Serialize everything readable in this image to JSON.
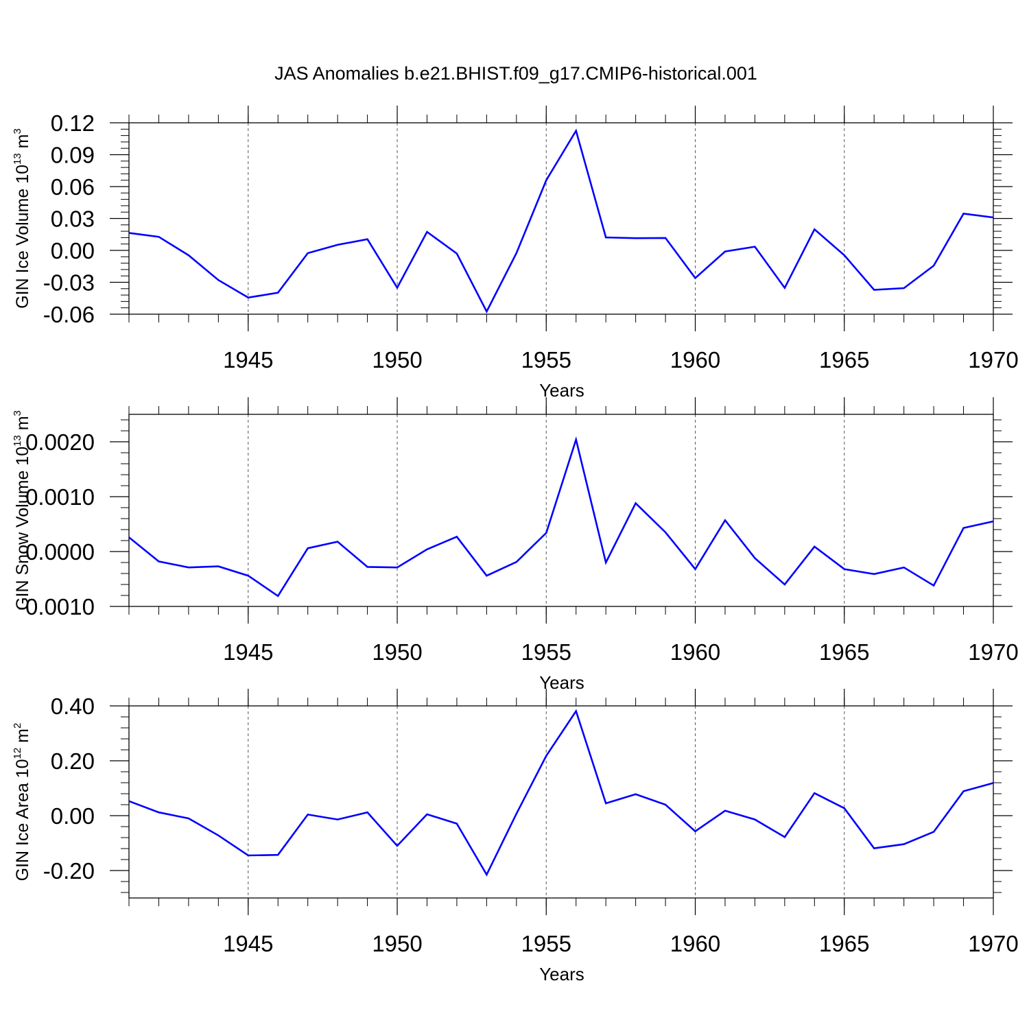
{
  "colors": {
    "series": "#0000ff",
    "axis": "#000000",
    "grid": "#555555",
    "background": "#ffffff"
  },
  "chart_data": [
    {
      "type": "line",
      "title": "JAS Anomalies b.e21.BHIST.f09_g17.CMIP6-historical.001",
      "xlabel": "Years",
      "ylabel_main": "GIN Ice Volume 10",
      "ylabel_exp": "13",
      "ylabel_unit": " m",
      "ylabel_unit_exp": "3",
      "xlim": [
        1941,
        1970
      ],
      "ylim": [
        -0.06,
        0.12
      ],
      "yticks": [
        -0.06,
        -0.03,
        0.0,
        0.03,
        0.06,
        0.09,
        0.12
      ],
      "ytick_labels": [
        "-0.06",
        "-0.03",
        "0.00",
        "0.03",
        "0.06",
        "0.09",
        "0.12"
      ],
      "xticks": [
        1945,
        1950,
        1955,
        1960,
        1965,
        1970
      ],
      "xtick_labels": [
        "1945",
        "1950",
        "1955",
        "1960",
        "1965",
        "1970"
      ],
      "x": [
        1941,
        1942,
        1943,
        1944,
        1945,
        1946,
        1947,
        1948,
        1949,
        1950,
        1951,
        1952,
        1953,
        1954,
        1955,
        1956,
        1957,
        1958,
        1959,
        1960,
        1961,
        1962,
        1963,
        1964,
        1965,
        1966,
        1967,
        1968,
        1969,
        1970
      ],
      "values": [
        0.0164,
        0.0128,
        -0.0046,
        -0.0279,
        -0.0444,
        -0.0398,
        -0.0026,
        0.0052,
        0.0105,
        -0.0351,
        0.0174,
        -0.003,
        -0.0575,
        -0.0026,
        0.066,
        0.1125,
        0.0122,
        0.0115,
        0.0117,
        -0.026,
        -0.001,
        0.0035,
        -0.0353,
        0.0198,
        -0.0046,
        -0.0371,
        -0.0355,
        -0.0144,
        0.0346,
        0.031
      ]
    },
    {
      "type": "line",
      "title": "",
      "xlabel": "Years",
      "ylabel_main": "GIN Snow Volume 10",
      "ylabel_exp": "13",
      "ylabel_unit": " m",
      "ylabel_unit_exp": "3",
      "xlim": [
        1941,
        1970
      ],
      "ylim": [
        -0.001,
        0.0025
      ],
      "yticks": [
        -0.001,
        0.0,
        0.001,
        0.002
      ],
      "ytick_labels": [
        "-0.0010",
        "0.0000",
        "0.0010",
        "0.0020"
      ],
      "xticks": [
        1945,
        1950,
        1955,
        1960,
        1965,
        1970
      ],
      "xtick_labels": [
        "1945",
        "1950",
        "1955",
        "1960",
        "1965",
        "1970"
      ],
      "x": [
        1941,
        1942,
        1943,
        1944,
        1945,
        1946,
        1947,
        1948,
        1949,
        1950,
        1951,
        1952,
        1953,
        1954,
        1955,
        1956,
        1957,
        1958,
        1959,
        1960,
        1961,
        1962,
        1963,
        1964,
        1965,
        1966,
        1967,
        1968,
        1969,
        1970
      ],
      "values": [
        0.00026,
        -0.00018,
        -0.00029,
        -0.00027,
        -0.00044,
        -0.00081,
        6e-05,
        0.00018,
        -0.00028,
        -0.00029,
        4e-05,
        0.00027,
        -0.00044,
        -0.00019,
        0.00034,
        0.00204,
        -0.0002,
        0.00088,
        0.00035,
        -0.00032,
        0.00057,
        -0.00012,
        -0.0006,
        9e-05,
        -0.00032,
        -0.00041,
        -0.00029,
        -0.00062,
        0.00043,
        0.00055
      ]
    },
    {
      "type": "line",
      "title": "",
      "xlabel": "Years",
      "ylabel_main": "GIN Ice Area 10",
      "ylabel_exp": "12",
      "ylabel_unit": " m",
      "ylabel_unit_exp": "2",
      "xlim": [
        1941,
        1970
      ],
      "ylim": [
        -0.3,
        0.4
      ],
      "yticks": [
        -0.2,
        0.0,
        0.2,
        0.4
      ],
      "ytick_labels": [
        "-0.20",
        "0.00",
        "0.20",
        "0.40"
      ],
      "xticks": [
        1945,
        1950,
        1955,
        1960,
        1965,
        1970
      ],
      "xtick_labels": [
        "1945",
        "1950",
        "1955",
        "1960",
        "1965",
        "1970"
      ],
      "x": [
        1941,
        1942,
        1943,
        1944,
        1945,
        1946,
        1947,
        1948,
        1949,
        1950,
        1951,
        1952,
        1953,
        1954,
        1955,
        1956,
        1957,
        1958,
        1959,
        1960,
        1961,
        1962,
        1963,
        1964,
        1965,
        1966,
        1967,
        1968,
        1969,
        1970
      ],
      "values": [
        0.053,
        0.012,
        -0.01,
        -0.072,
        -0.145,
        -0.143,
        0.004,
        -0.014,
        0.012,
        -0.11,
        0.005,
        -0.029,
        -0.215,
        0.007,
        0.218,
        0.381,
        0.045,
        0.078,
        0.04,
        -0.057,
        0.018,
        -0.014,
        -0.078,
        0.082,
        0.027,
        -0.119,
        -0.104,
        -0.059,
        0.089,
        0.119
      ]
    }
  ]
}
